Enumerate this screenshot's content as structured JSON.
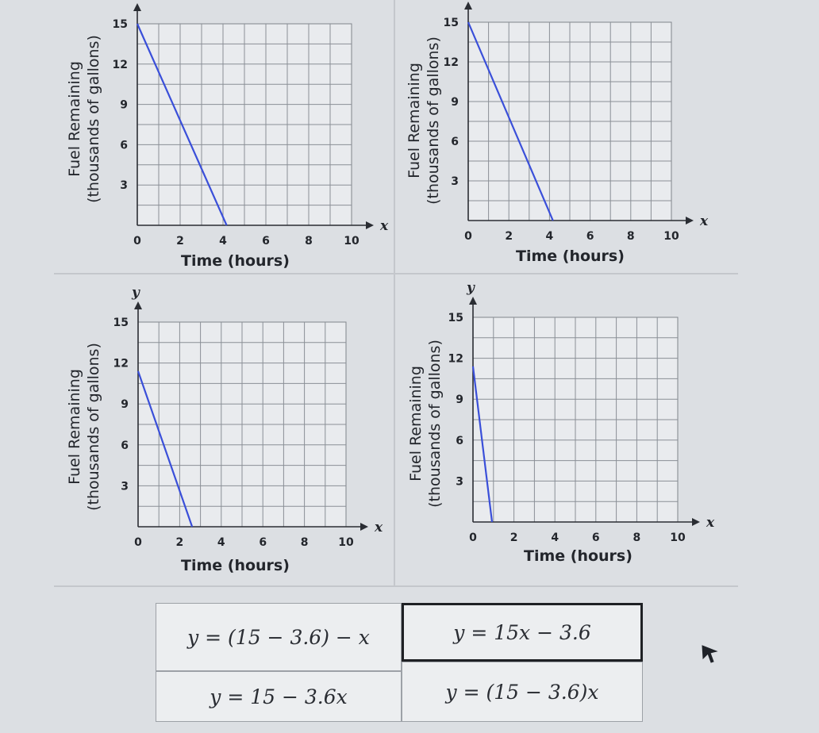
{
  "chart_data": [
    {
      "type": "line",
      "xlabel": "Time (hours)",
      "ylabel": [
        "Fuel Remaining",
        "(thousands of gallons)"
      ],
      "x_axis_name": "x",
      "y_axis_name": "",
      "x_ticks": [
        "0",
        "2",
        "4",
        "6",
        "8",
        "10"
      ],
      "y_ticks": [
        "3",
        "6",
        "9",
        "12",
        "15"
      ],
      "xlim": [
        0,
        10
      ],
      "ylim": [
        0,
        15
      ],
      "grid": true,
      "series": [
        {
          "x": [
            0,
            4.17
          ],
          "y": [
            15,
            0
          ],
          "color": "#3a4fd9"
        }
      ]
    },
    {
      "type": "line",
      "xlabel": "Time (hours)",
      "ylabel": [
        "Fuel Remaining",
        "(thousands of gallons)"
      ],
      "x_axis_name": "x",
      "y_axis_name": "",
      "x_ticks": [
        "0",
        "2",
        "4",
        "6",
        "8",
        "10"
      ],
      "y_ticks": [
        "3",
        "6",
        "9",
        "12",
        "15"
      ],
      "xlim": [
        0,
        10
      ],
      "ylim": [
        0,
        15
      ],
      "grid": true,
      "series": [
        {
          "x": [
            0,
            4.17
          ],
          "y": [
            15,
            0
          ],
          "color": "#3a4fd9"
        }
      ]
    },
    {
      "type": "line",
      "xlabel": "Time (hours)",
      "ylabel": [
        "Fuel Remaining",
        "(thousands of gallons)"
      ],
      "x_axis_name": "x",
      "y_axis_name": "y",
      "x_ticks": [
        "0",
        "2",
        "4",
        "6",
        "8",
        "10"
      ],
      "y_ticks": [
        "3",
        "6",
        "9",
        "12",
        "15"
      ],
      "xlim": [
        0,
        10
      ],
      "ylim": [
        0,
        15
      ],
      "grid": true,
      "series": [
        {
          "x": [
            0,
            2.6
          ],
          "y": [
            11.4,
            0
          ],
          "color": "#3a4fd9"
        }
      ]
    },
    {
      "type": "line",
      "xlabel": "Time (hours)",
      "ylabel": [
        "Fuel Remaining",
        "(thousands of gallons)"
      ],
      "x_axis_name": "x",
      "y_axis_name": "y",
      "x_ticks": [
        "0",
        "2",
        "4",
        "6",
        "8",
        "10"
      ],
      "y_ticks": [
        "3",
        "6",
        "9",
        "12",
        "15"
      ],
      "xlim": [
        0,
        10
      ],
      "ylim": [
        0,
        15
      ],
      "grid": true,
      "series": [
        {
          "x": [
            0,
            0.93
          ],
          "y": [
            11.4,
            0
          ],
          "color": "#3a4fd9"
        }
      ]
    }
  ],
  "answer_choices": [
    {
      "text": "y = (15 − 3.6) − x",
      "selected": false
    },
    {
      "text": "y = 15x − 3.6",
      "selected": true
    },
    {
      "text": "y = 15 − 3.6x",
      "selected": false
    },
    {
      "text": "y = (15 − 3.6)x",
      "selected": false
    }
  ]
}
